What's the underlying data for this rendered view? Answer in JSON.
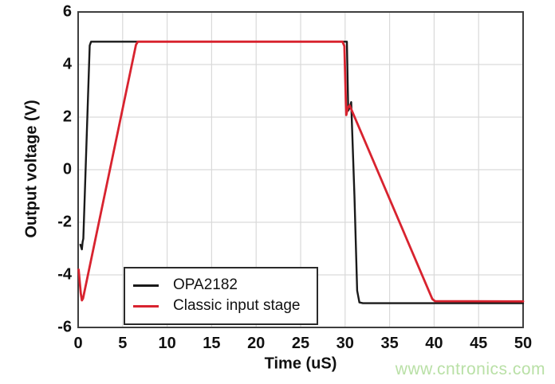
{
  "chart_data": {
    "type": "line",
    "title": "",
    "xlabel": "Time (uS)",
    "ylabel": "Output voltage (V)",
    "xlim": [
      0,
      50
    ],
    "ylim": [
      -6,
      6
    ],
    "xticks": [
      0,
      5,
      10,
      15,
      20,
      25,
      30,
      35,
      40,
      45,
      50
    ],
    "yticks": [
      -6,
      -4,
      -2,
      0,
      2,
      4,
      6
    ],
    "grid": true,
    "grid_color": "#d9d9d9",
    "frame_color": "#3f3f3f",
    "legend_position": "lower-left-inside",
    "series": [
      {
        "name": "OPA2182",
        "color": "#1a1a1a",
        "line_width": 2.4,
        "points": [
          [
            0.25,
            -2.85
          ],
          [
            0.42,
            -3.03
          ],
          [
            0.5,
            -2.75
          ],
          [
            0.58,
            -2.62
          ],
          [
            1.3,
            4.72
          ],
          [
            1.45,
            4.87
          ],
          [
            30.2,
            4.87
          ],
          [
            30.35,
            2.25
          ],
          [
            30.5,
            2.35
          ],
          [
            30.68,
            2.57
          ],
          [
            31.05,
            -1.0
          ],
          [
            31.35,
            -4.6
          ],
          [
            31.6,
            -5.05
          ],
          [
            32.0,
            -5.08
          ],
          [
            50.0,
            -5.08
          ]
        ]
      },
      {
        "name": "Classic input stage",
        "color": "#d8232f",
        "line_width": 2.8,
        "points": [
          [
            0.05,
            -3.8
          ],
          [
            0.3,
            -4.7
          ],
          [
            0.42,
            -4.97
          ],
          [
            0.55,
            -4.9
          ],
          [
            6.5,
            4.75
          ],
          [
            6.7,
            4.87
          ],
          [
            29.7,
            4.87
          ],
          [
            29.92,
            4.7
          ],
          [
            30.08,
            2.6
          ],
          [
            30.13,
            2.08
          ],
          [
            30.3,
            2.35
          ],
          [
            30.5,
            2.45
          ],
          [
            39.8,
            -4.92
          ],
          [
            40.1,
            -5.0
          ],
          [
            50.0,
            -5.01
          ]
        ]
      }
    ]
  },
  "watermark": {
    "text": "www.cntronics.com",
    "color": "#b9e0a6"
  }
}
